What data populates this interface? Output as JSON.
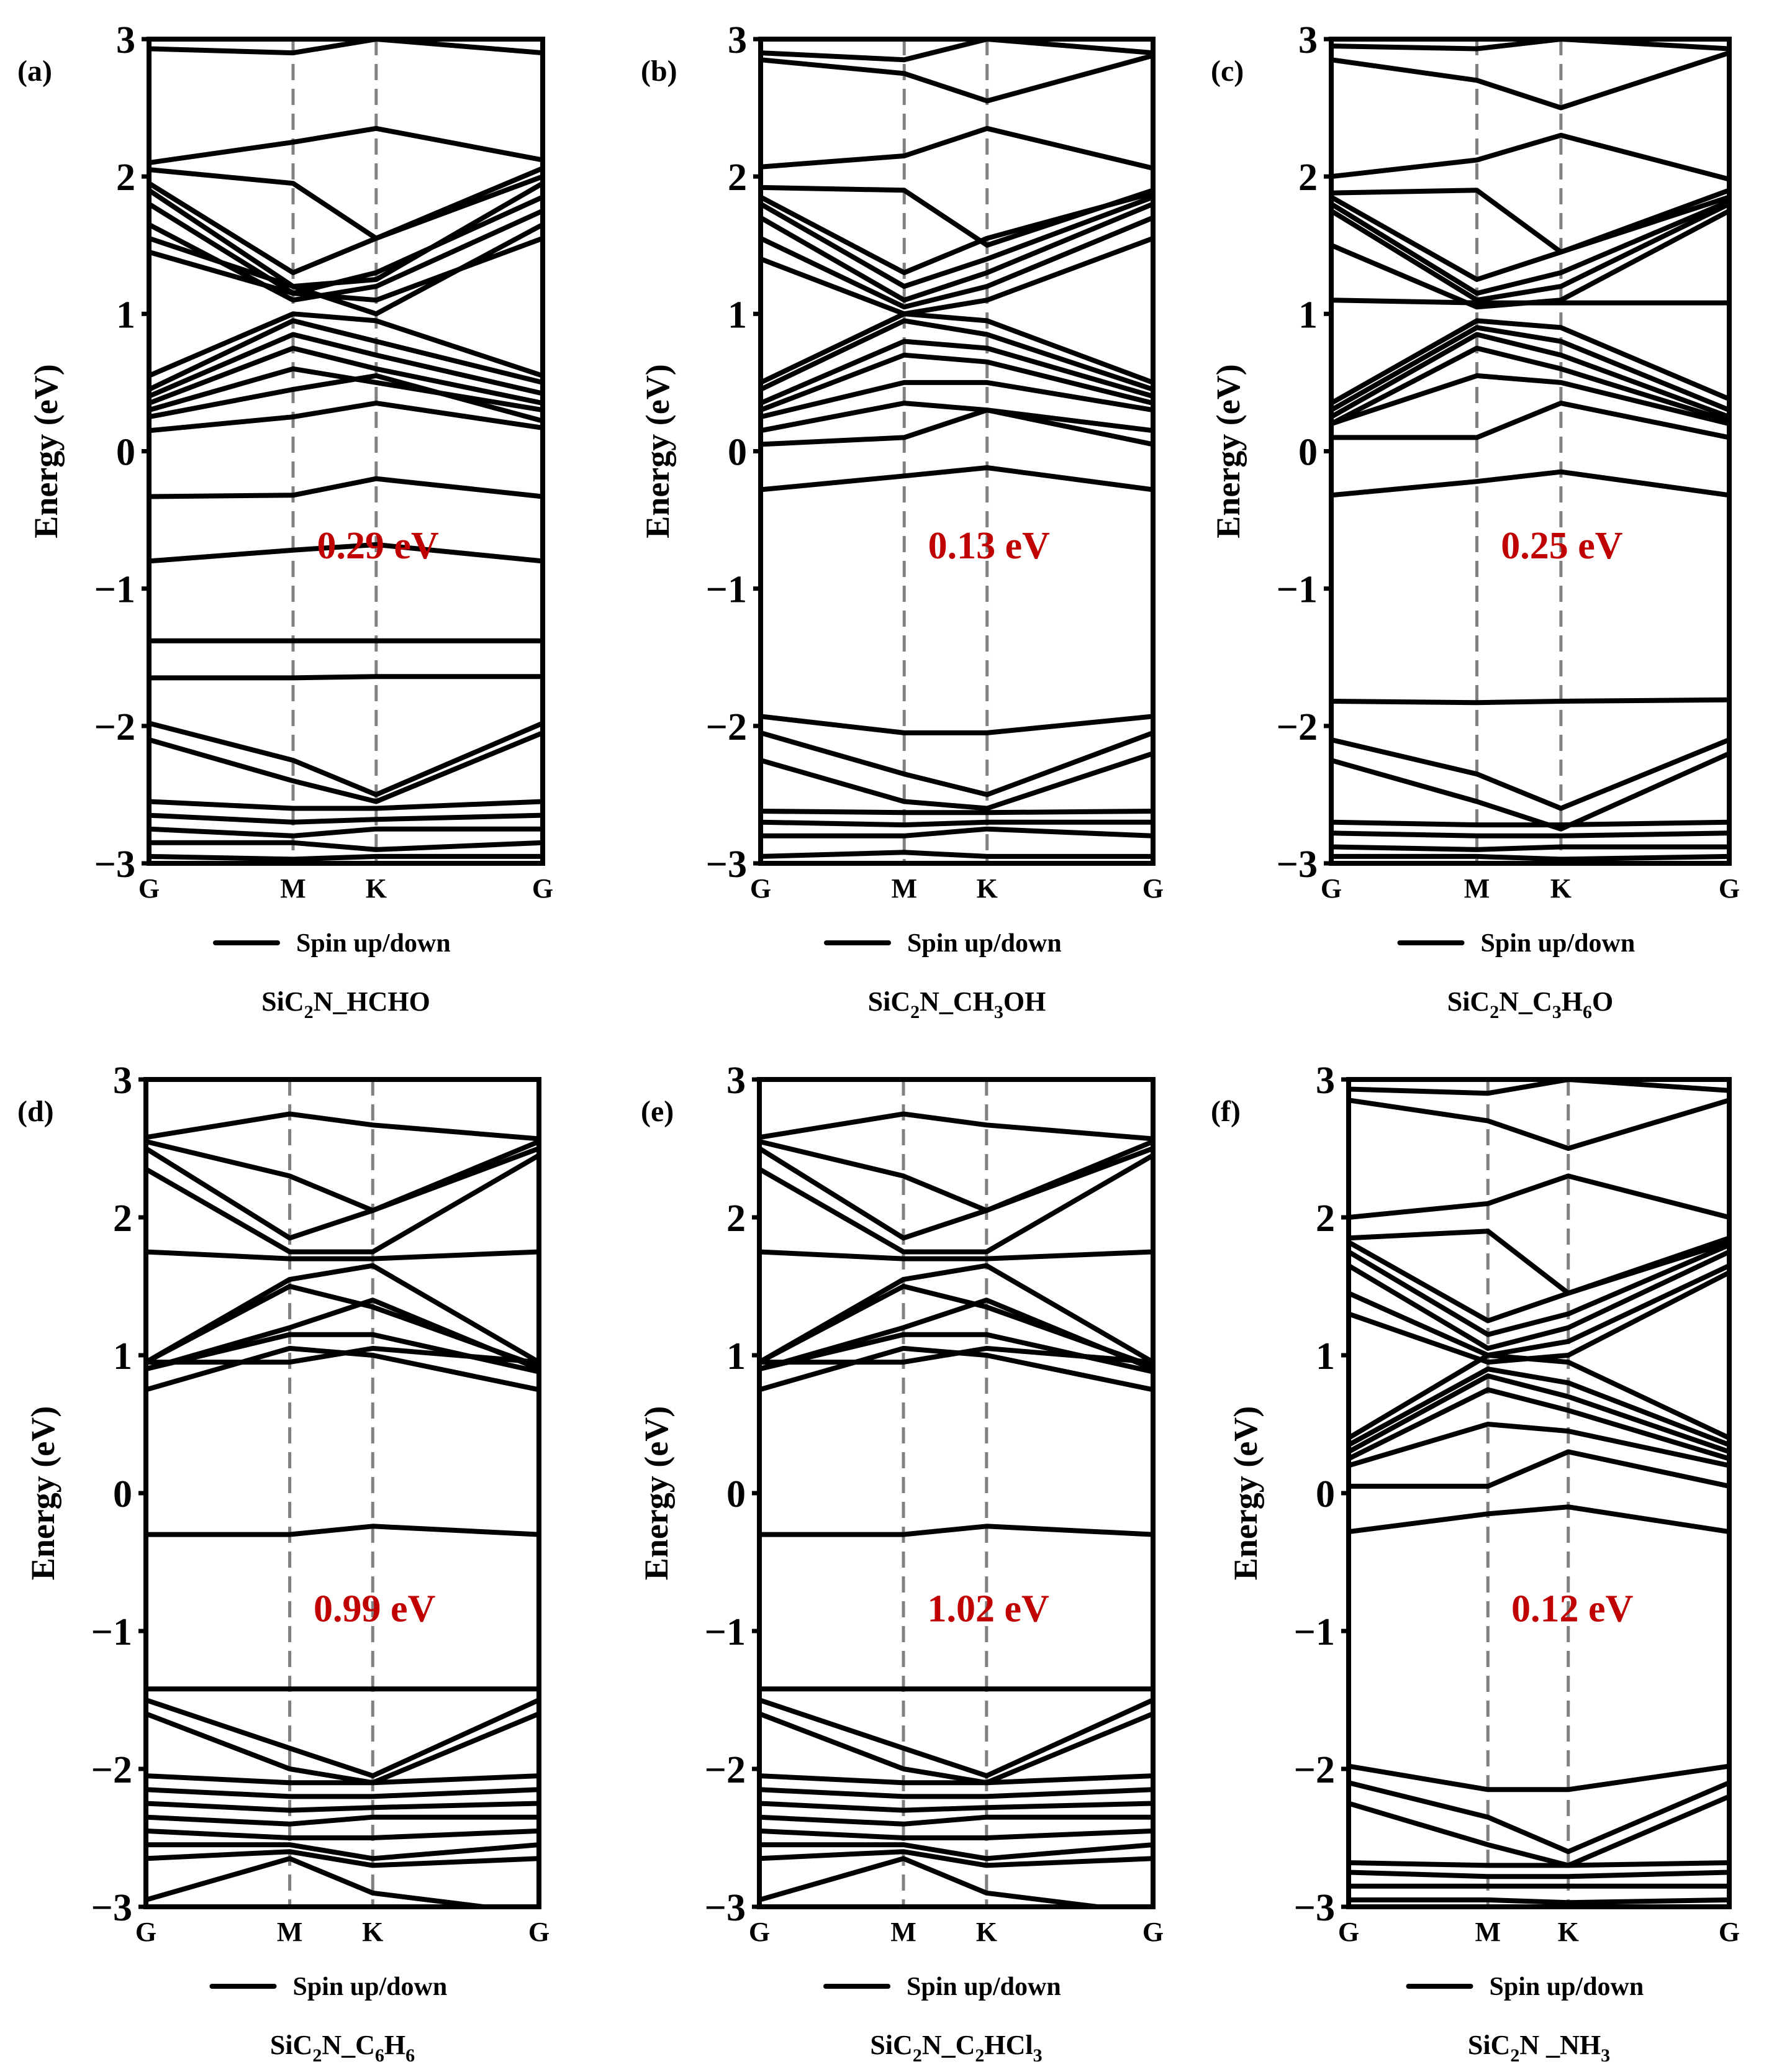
{
  "chart_data": [
    {
      "type": "line",
      "panel_label": "(a)",
      "title_parts": [
        {
          "t": "SiC"
        },
        {
          "t": "2",
          "sub": true
        },
        {
          "t": "N_HCHO"
        }
      ],
      "ylabel": "Energy (eV)",
      "ylim": [
        -3,
        3
      ],
      "yticks": [
        "3",
        "2",
        "1",
        "0",
        "−1",
        "−2",
        "−3"
      ],
      "ytick_values": [
        3,
        2,
        1,
        0,
        -1,
        -2,
        -3
      ],
      "kpoints": [
        {
          "label": "G",
          "pos": 0
        },
        {
          "label": "M",
          "pos": 0.577
        },
        {
          "label": "K",
          "pos": 0.91
        },
        {
          "label": "G",
          "pos": 1.577
        }
      ],
      "band_gap_label": "0.29 eV",
      "legend": "Spin up/down",
      "bands": [
        [
          2.93,
          2.9,
          3.0,
          2.9
        ],
        [
          2.1,
          2.25,
          2.35,
          2.12
        ],
        [
          2.05,
          1.95,
          1.55,
          2.06
        ],
        [
          1.95,
          1.3,
          1.55,
          2.0
        ],
        [
          1.9,
          1.2,
          1.25,
          1.95
        ],
        [
          1.8,
          1.15,
          1.3,
          1.85
        ],
        [
          1.65,
          1.1,
          1.2,
          1.75
        ],
        [
          1.55,
          1.2,
          1.0,
          1.65
        ],
        [
          1.45,
          1.15,
          1.1,
          1.55
        ],
        [
          0.55,
          1.0,
          0.95,
          0.55
        ],
        [
          0.45,
          0.95,
          0.8,
          0.5
        ],
        [
          0.4,
          0.85,
          0.7,
          0.42
        ],
        [
          0.35,
          0.75,
          0.6,
          0.35
        ],
        [
          0.3,
          0.6,
          0.5,
          0.3
        ],
        [
          0.25,
          0.45,
          0.55,
          0.22
        ],
        [
          0.15,
          0.25,
          0.35,
          0.17
        ],
        [
          -0.33,
          -0.32,
          -0.2,
          -0.33
        ],
        [
          -0.8,
          -0.72,
          -0.68,
          -0.8
        ],
        [
          -1.38,
          -1.38,
          -1.38,
          -1.38
        ],
        [
          -1.65,
          -1.65,
          -1.64,
          -1.64
        ],
        [
          -1.98,
          -2.25,
          -2.5,
          -1.98
        ],
        [
          -2.1,
          -2.4,
          -2.55,
          -2.05
        ],
        [
          -2.55,
          -2.6,
          -2.6,
          -2.55
        ],
        [
          -2.65,
          -2.7,
          -2.68,
          -2.65
        ],
        [
          -2.75,
          -2.8,
          -2.75,
          -2.75
        ],
        [
          -2.85,
          -2.85,
          -2.9,
          -2.85
        ],
        [
          -2.95,
          -2.97,
          -2.95,
          -2.95
        ]
      ]
    },
    {
      "type": "line",
      "panel_label": "(b)",
      "title_parts": [
        {
          "t": "SiC"
        },
        {
          "t": "2",
          "sub": true
        },
        {
          "t": "N_CH"
        },
        {
          "t": "3",
          "sub": true
        },
        {
          "t": "OH"
        }
      ],
      "ylabel": "Energy (eV)",
      "ylim": [
        -3,
        3
      ],
      "yticks": [
        "3",
        "2",
        "1",
        "0",
        "−1",
        "−2",
        "−3"
      ],
      "ytick_values": [
        3,
        2,
        1,
        0,
        -1,
        -2,
        -3
      ],
      "kpoints": [
        {
          "label": "G",
          "pos": 0
        },
        {
          "label": "M",
          "pos": 0.577
        },
        {
          "label": "K",
          "pos": 0.91
        },
        {
          "label": "G",
          "pos": 1.577
        }
      ],
      "band_gap_label": "0.13 eV",
      "legend": "Spin up/down",
      "bands": [
        [
          2.9,
          2.85,
          3.0,
          2.9
        ],
        [
          2.85,
          2.75,
          2.55,
          2.88
        ],
        [
          2.07,
          2.15,
          2.35,
          2.06
        ],
        [
          1.92,
          1.9,
          1.5,
          1.9
        ],
        [
          1.85,
          1.3,
          1.55,
          1.88
        ],
        [
          1.8,
          1.2,
          1.4,
          1.85
        ],
        [
          1.7,
          1.1,
          1.3,
          1.8
        ],
        [
          1.55,
          1.05,
          1.2,
          1.7
        ],
        [
          1.4,
          1.0,
          1.1,
          1.55
        ],
        [
          0.5,
          1.0,
          0.95,
          0.5
        ],
        [
          0.45,
          0.95,
          0.85,
          0.45
        ],
        [
          0.35,
          0.8,
          0.75,
          0.4
        ],
        [
          0.3,
          0.7,
          0.65,
          0.35
        ],
        [
          0.25,
          0.5,
          0.5,
          0.3
        ],
        [
          0.15,
          0.35,
          0.3,
          0.15
        ],
        [
          0.05,
          0.1,
          0.3,
          0.05
        ],
        [
          -0.28,
          -0.18,
          -0.12,
          -0.28
        ],
        [
          -1.93,
          -2.05,
          -2.05,
          -1.93
        ],
        [
          -2.05,
          -2.35,
          -2.5,
          -2.05
        ],
        [
          -2.25,
          -2.55,
          -2.6,
          -2.2
        ],
        [
          -2.62,
          -2.63,
          -2.63,
          -2.62
        ],
        [
          -2.7,
          -2.72,
          -2.7,
          -2.7
        ],
        [
          -2.8,
          -2.8,
          -2.75,
          -2.8
        ],
        [
          -2.95,
          -2.92,
          -2.95,
          -2.95
        ]
      ]
    },
    {
      "type": "line",
      "panel_label": "(c)",
      "title_parts": [
        {
          "t": "SiC"
        },
        {
          "t": "2",
          "sub": true
        },
        {
          "t": "N_C"
        },
        {
          "t": "3",
          "sub": true
        },
        {
          "t": "H"
        },
        {
          "t": "6",
          "sub": true
        },
        {
          "t": "O"
        }
      ],
      "ylabel": "Energy (eV)",
      "ylim": [
        -3,
        3
      ],
      "yticks": [
        "3",
        "2",
        "1",
        "0",
        "−1",
        "−2",
        "−3"
      ],
      "ytick_values": [
        3,
        2,
        1,
        0,
        -1,
        -2,
        -3
      ],
      "kpoints": [
        {
          "label": "G",
          "pos": 0
        },
        {
          "label": "M",
          "pos": 0.577
        },
        {
          "label": "K",
          "pos": 0.91
        },
        {
          "label": "G",
          "pos": 1.577
        }
      ],
      "band_gap_label": "0.25 eV",
      "legend": "Spin up/down",
      "bands": [
        [
          2.95,
          2.93,
          3.0,
          2.93
        ],
        [
          2.85,
          2.7,
          2.5,
          2.9
        ],
        [
          2.0,
          2.12,
          2.3,
          1.98
        ],
        [
          1.88,
          1.9,
          1.45,
          1.9
        ],
        [
          1.85,
          1.25,
          1.45,
          1.85
        ],
        [
          1.8,
          1.15,
          1.3,
          1.82
        ],
        [
          1.75,
          1.1,
          1.2,
          1.8
        ],
        [
          1.5,
          1.05,
          1.1,
          1.75
        ],
        [
          1.1,
          1.08,
          1.08,
          1.08
        ],
        [
          0.35,
          0.95,
          0.9,
          0.38
        ],
        [
          0.3,
          0.9,
          0.8,
          0.3
        ],
        [
          0.25,
          0.85,
          0.7,
          0.25
        ],
        [
          0.2,
          0.75,
          0.6,
          0.22
        ],
        [
          0.2,
          0.55,
          0.5,
          0.2
        ],
        [
          0.1,
          0.1,
          0.35,
          0.1
        ],
        [
          -0.32,
          -0.22,
          -0.15,
          -0.32
        ],
        [
          -1.82,
          -1.83,
          -1.82,
          -1.81
        ],
        [
          -2.1,
          -2.35,
          -2.6,
          -2.1
        ],
        [
          -2.25,
          -2.55,
          -2.75,
          -2.2
        ],
        [
          -2.7,
          -2.72,
          -2.72,
          -2.7
        ],
        [
          -2.78,
          -2.8,
          -2.8,
          -2.78
        ],
        [
          -2.88,
          -2.9,
          -2.88,
          -2.88
        ],
        [
          -2.95,
          -2.95,
          -2.97,
          -2.95
        ]
      ]
    },
    {
      "type": "line",
      "panel_label": "(d)",
      "title_parts": [
        {
          "t": "SiC"
        },
        {
          "t": "2",
          "sub": true
        },
        {
          "t": "N_C"
        },
        {
          "t": "6",
          "sub": true
        },
        {
          "t": "H"
        },
        {
          "t": "6",
          "sub": true
        }
      ],
      "ylabel": "Energy (eV)",
      "ylim": [
        -3,
        3
      ],
      "yticks": [
        "3",
        "2",
        "1",
        "0",
        "−1",
        "−2",
        "−3"
      ],
      "ytick_values": [
        3,
        2,
        1,
        0,
        -1,
        -2,
        -3
      ],
      "kpoints": [
        {
          "label": "G",
          "pos": 0
        },
        {
          "label": "M",
          "pos": 0.577
        },
        {
          "label": "K",
          "pos": 0.91
        },
        {
          "label": "G",
          "pos": 1.577
        }
      ],
      "band_gap_label": "0.99 eV",
      "legend": "Spin up/down",
      "bands": [
        [
          2.58,
          2.75,
          2.67,
          2.57
        ],
        [
          2.55,
          2.3,
          2.05,
          2.55
        ],
        [
          2.5,
          1.85,
          2.05,
          2.5
        ],
        [
          2.35,
          1.75,
          1.75,
          2.45
        ],
        [
          1.75,
          1.7,
          1.7,
          1.75
        ],
        [
          0.95,
          1.55,
          1.65,
          0.95
        ],
        [
          0.95,
          1.5,
          1.35,
          0.92
        ],
        [
          0.9,
          1.2,
          1.4,
          0.9
        ],
        [
          0.9,
          1.15,
          1.15,
          0.88
        ],
        [
          0.95,
          0.95,
          1.05,
          0.95
        ],
        [
          0.75,
          1.05,
          1.0,
          0.75
        ],
        [
          -0.3,
          -0.3,
          -0.24,
          -0.3
        ],
        [
          -1.42,
          -1.42,
          -1.42,
          -1.42
        ],
        [
          -1.5,
          -1.85,
          -2.05,
          -1.5
        ],
        [
          -1.6,
          -2.0,
          -2.1,
          -1.6
        ],
        [
          -2.05,
          -2.1,
          -2.1,
          -2.05
        ],
        [
          -2.15,
          -2.2,
          -2.2,
          -2.15
        ],
        [
          -2.25,
          -2.3,
          -2.28,
          -2.25
        ],
        [
          -2.35,
          -2.4,
          -2.35,
          -2.35
        ],
        [
          -2.45,
          -2.5,
          -2.5,
          -2.45
        ],
        [
          -2.55,
          -2.55,
          -2.65,
          -2.55
        ],
        [
          -2.65,
          -2.6,
          -2.7,
          -2.65
        ],
        [
          -2.95,
          -2.65,
          -2.9,
          -3.05
        ]
      ]
    },
    {
      "type": "line",
      "panel_label": "(e)",
      "title_parts": [
        {
          "t": "SiC"
        },
        {
          "t": "2",
          "sub": true
        },
        {
          "t": "N_C"
        },
        {
          "t": "2",
          "sub": true
        },
        {
          "t": "HCl"
        },
        {
          "t": "3",
          "sub": true
        }
      ],
      "ylabel": "Energy (eV)",
      "ylim": [
        -3,
        3
      ],
      "yticks": [
        "3",
        "2",
        "1",
        "0",
        "−1",
        "−2",
        "−3"
      ],
      "ytick_values": [
        3,
        2,
        1,
        0,
        -1,
        -2,
        -3
      ],
      "kpoints": [
        {
          "label": "G",
          "pos": 0
        },
        {
          "label": "M",
          "pos": 0.577
        },
        {
          "label": "K",
          "pos": 0.91
        },
        {
          "label": "G",
          "pos": 1.577
        }
      ],
      "band_gap_label": "1.02 eV",
      "legend": "Spin up/down",
      "bands": [
        [
          2.58,
          2.75,
          2.67,
          2.57
        ],
        [
          2.55,
          2.3,
          2.05,
          2.55
        ],
        [
          2.5,
          1.85,
          2.05,
          2.5
        ],
        [
          2.35,
          1.75,
          1.75,
          2.45
        ],
        [
          1.75,
          1.7,
          1.7,
          1.75
        ],
        [
          0.95,
          1.55,
          1.65,
          0.95
        ],
        [
          0.95,
          1.5,
          1.35,
          0.92
        ],
        [
          0.9,
          1.2,
          1.4,
          0.9
        ],
        [
          0.9,
          1.15,
          1.15,
          0.88
        ],
        [
          0.95,
          0.95,
          1.05,
          0.95
        ],
        [
          0.75,
          1.05,
          1.0,
          0.75
        ],
        [
          -0.3,
          -0.3,
          -0.24,
          -0.3
        ],
        [
          -1.42,
          -1.42,
          -1.42,
          -1.42
        ],
        [
          -1.5,
          -1.85,
          -2.05,
          -1.5
        ],
        [
          -1.6,
          -2.0,
          -2.1,
          -1.6
        ],
        [
          -2.05,
          -2.1,
          -2.1,
          -2.05
        ],
        [
          -2.15,
          -2.2,
          -2.2,
          -2.15
        ],
        [
          -2.25,
          -2.3,
          -2.28,
          -2.25
        ],
        [
          -2.35,
          -2.4,
          -2.35,
          -2.35
        ],
        [
          -2.45,
          -2.5,
          -2.5,
          -2.45
        ],
        [
          -2.55,
          -2.55,
          -2.65,
          -2.55
        ],
        [
          -2.65,
          -2.6,
          -2.7,
          -2.65
        ],
        [
          -2.95,
          -2.65,
          -2.9,
          -3.05
        ]
      ]
    },
    {
      "type": "line",
      "panel_label": "(f)",
      "title_parts": [
        {
          "t": "SiC"
        },
        {
          "t": "2",
          "sub": true
        },
        {
          "t": "N _NH"
        },
        {
          "t": "3",
          "sub": true
        }
      ],
      "ylabel": "Energy (eV)",
      "ylim": [
        -3,
        3
      ],
      "yticks": [
        "3",
        "2",
        "1",
        "0",
        "−1",
        "−2",
        "−3"
      ],
      "ytick_values": [
        3,
        2,
        1,
        0,
        -1,
        -2,
        -3
      ],
      "kpoints": [
        {
          "label": "G",
          "pos": 0
        },
        {
          "label": "M",
          "pos": 0.577
        },
        {
          "label": "K",
          "pos": 0.91
        },
        {
          "label": "G",
          "pos": 1.577
        }
      ],
      "band_gap_label": "0.12 eV",
      "legend": "Spin up/down",
      "bands": [
        [
          2.93,
          2.9,
          3.0,
          2.92
        ],
        [
          2.85,
          2.7,
          2.5,
          2.85
        ],
        [
          2.0,
          2.1,
          2.3,
          2.0
        ],
        [
          1.85,
          1.9,
          1.45,
          1.85
        ],
        [
          1.82,
          1.25,
          1.45,
          1.82
        ],
        [
          1.75,
          1.15,
          1.3,
          1.8
        ],
        [
          1.65,
          1.05,
          1.2,
          1.75
        ],
        [
          1.45,
          1.0,
          1.1,
          1.65
        ],
        [
          1.3,
          0.95,
          1.0,
          1.6
        ],
        [
          0.4,
          1.0,
          0.95,
          0.4
        ],
        [
          0.35,
          0.9,
          0.8,
          0.35
        ],
        [
          0.3,
          0.85,
          0.7,
          0.3
        ],
        [
          0.25,
          0.75,
          0.6,
          0.25
        ],
        [
          0.2,
          0.5,
          0.45,
          0.2
        ],
        [
          0.05,
          0.05,
          0.3,
          0.05
        ],
        [
          -0.28,
          -0.15,
          -0.1,
          -0.28
        ],
        [
          -1.98,
          -2.15,
          -2.15,
          -1.98
        ],
        [
          -2.1,
          -2.35,
          -2.6,
          -2.1
        ],
        [
          -2.25,
          -2.55,
          -2.7,
          -2.2
        ],
        [
          -2.68,
          -2.7,
          -2.7,
          -2.68
        ],
        [
          -2.75,
          -2.78,
          -2.78,
          -2.75
        ],
        [
          -2.85,
          -2.85,
          -2.85,
          -2.85
        ],
        [
          -2.95,
          -2.95,
          -2.97,
          -2.95
        ]
      ]
    }
  ]
}
